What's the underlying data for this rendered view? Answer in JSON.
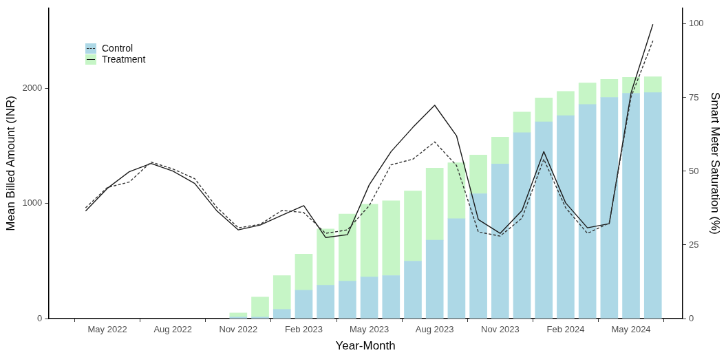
{
  "chart_data": {
    "type": "bar",
    "xlabel": "Year-Month",
    "ylabel": "Mean Billed Amount (INR)",
    "y2label": "Smart Meter Saturation (%)",
    "xlim": [
      "2022-02-10",
      "2024-07-12"
    ],
    "xticks": [
      {
        "value": "2022-05",
        "label": "May 2022"
      },
      {
        "value": "2022-08",
        "label": "Aug 2022"
      },
      {
        "value": "2022-11",
        "label": "Nov 2022"
      },
      {
        "value": "2023-02",
        "label": "Feb 2023"
      },
      {
        "value": "2023-05",
        "label": "May 2023"
      },
      {
        "value": "2023-08",
        "label": "Aug 2023"
      },
      {
        "value": "2023-11",
        "label": "Nov 2023"
      },
      {
        "value": "2024-02",
        "label": "Feb 2024"
      },
      {
        "value": "2024-05",
        "label": "May 2024"
      }
    ],
    "ylim": [
      0,
      2700
    ],
    "yticks": [
      0,
      1000,
      2000
    ],
    "y2lim": [
      0,
      105.4
    ],
    "y2ticks": [
      0,
      25,
      50,
      75,
      100
    ],
    "stacked": true,
    "grid": false,
    "legend": "top left",
    "series": [
      {
        "name": "Control",
        "axis": "y2",
        "color": "#add8e6",
        "x": [
          "2022-11",
          "2022-12",
          "2023-01",
          "2023-02",
          "2023-03",
          "2023-04",
          "2023-05",
          "2023-06",
          "2023-07",
          "2023-08",
          "2023-09",
          "2023-10",
          "2023-11",
          "2023-12",
          "2024-01",
          "2024-02",
          "2024-03",
          "2024-04",
          "2024-05",
          "2024-06"
        ],
        "values": [
          0.5,
          0.5,
          3.1,
          9.6,
          11.3,
          12.7,
          14.1,
          14.6,
          19.5,
          26.6,
          33.9,
          42.4,
          52.5,
          63.1,
          66.8,
          68.9,
          72.7,
          75.1,
          76.5,
          76.7
        ]
      },
      {
        "name": "Treatment",
        "axis": "y2",
        "color": "#c6f5c6",
        "x": [
          "2022-11",
          "2022-12",
          "2023-01",
          "2023-02",
          "2023-03",
          "2023-04",
          "2023-05",
          "2023-06",
          "2023-07",
          "2023-08",
          "2023-09",
          "2023-10",
          "2023-11",
          "2023-12",
          "2024-01",
          "2024-02",
          "2024-03",
          "2024-04",
          "2024-05",
          "2024-06"
        ],
        "values": [
          1.4,
          6.8,
          11.5,
          12.3,
          19.1,
          22.8,
          24.7,
          25.4,
          23.8,
          24.5,
          19.0,
          13.1,
          9.1,
          7.0,
          8.1,
          8.2,
          7.3,
          6.1,
          5.4,
          5.4
        ]
      },
      {
        "type": "line",
        "axis": "y",
        "color": "#333333",
        "line_style": "dashed",
        "x": [
          "2022-04",
          "2022-05",
          "2022-06",
          "2022-07",
          "2022-08",
          "2022-09",
          "2022-10",
          "2022-11",
          "2022-12",
          "2023-01",
          "2023-02",
          "2023-03",
          "2023-04",
          "2023-05",
          "2023-06",
          "2023-07",
          "2023-08",
          "2023-09",
          "2023-10",
          "2023-11",
          "2023-12",
          "2024-01",
          "2024-02",
          "2024-03",
          "2024-04",
          "2024-05",
          "2024-06"
        ],
        "values": [
          964,
          1140,
          1187,
          1361,
          1301,
          1217,
          970,
          789,
          819,
          940,
          922,
          741,
          771,
          982,
          1337,
          1386,
          1536,
          1331,
          753,
          717,
          873,
          1386,
          964,
          741,
          831,
          1928,
          2416
        ]
      },
      {
        "type": "line",
        "axis": "y",
        "color": "#1a1a1a",
        "line_style": "solid",
        "x": [
          "2022-04",
          "2022-05",
          "2022-06",
          "2022-07",
          "2022-08",
          "2022-09",
          "2022-10",
          "2022-11",
          "2022-12",
          "2023-01",
          "2023-02",
          "2023-03",
          "2023-04",
          "2023-05",
          "2023-06",
          "2023-07",
          "2023-08",
          "2023-09",
          "2023-10",
          "2023-11",
          "2023-12",
          "2024-01",
          "2024-02",
          "2024-03",
          "2024-04",
          "2024-05",
          "2024-06"
        ],
        "values": [
          935,
          1133,
          1277,
          1349,
          1283,
          1175,
          940,
          771,
          813,
          898,
          982,
          705,
          729,
          1163,
          1452,
          1663,
          1855,
          1590,
          861,
          741,
          940,
          1452,
          1006,
          789,
          825,
          1964,
          2560
        ]
      }
    ]
  }
}
